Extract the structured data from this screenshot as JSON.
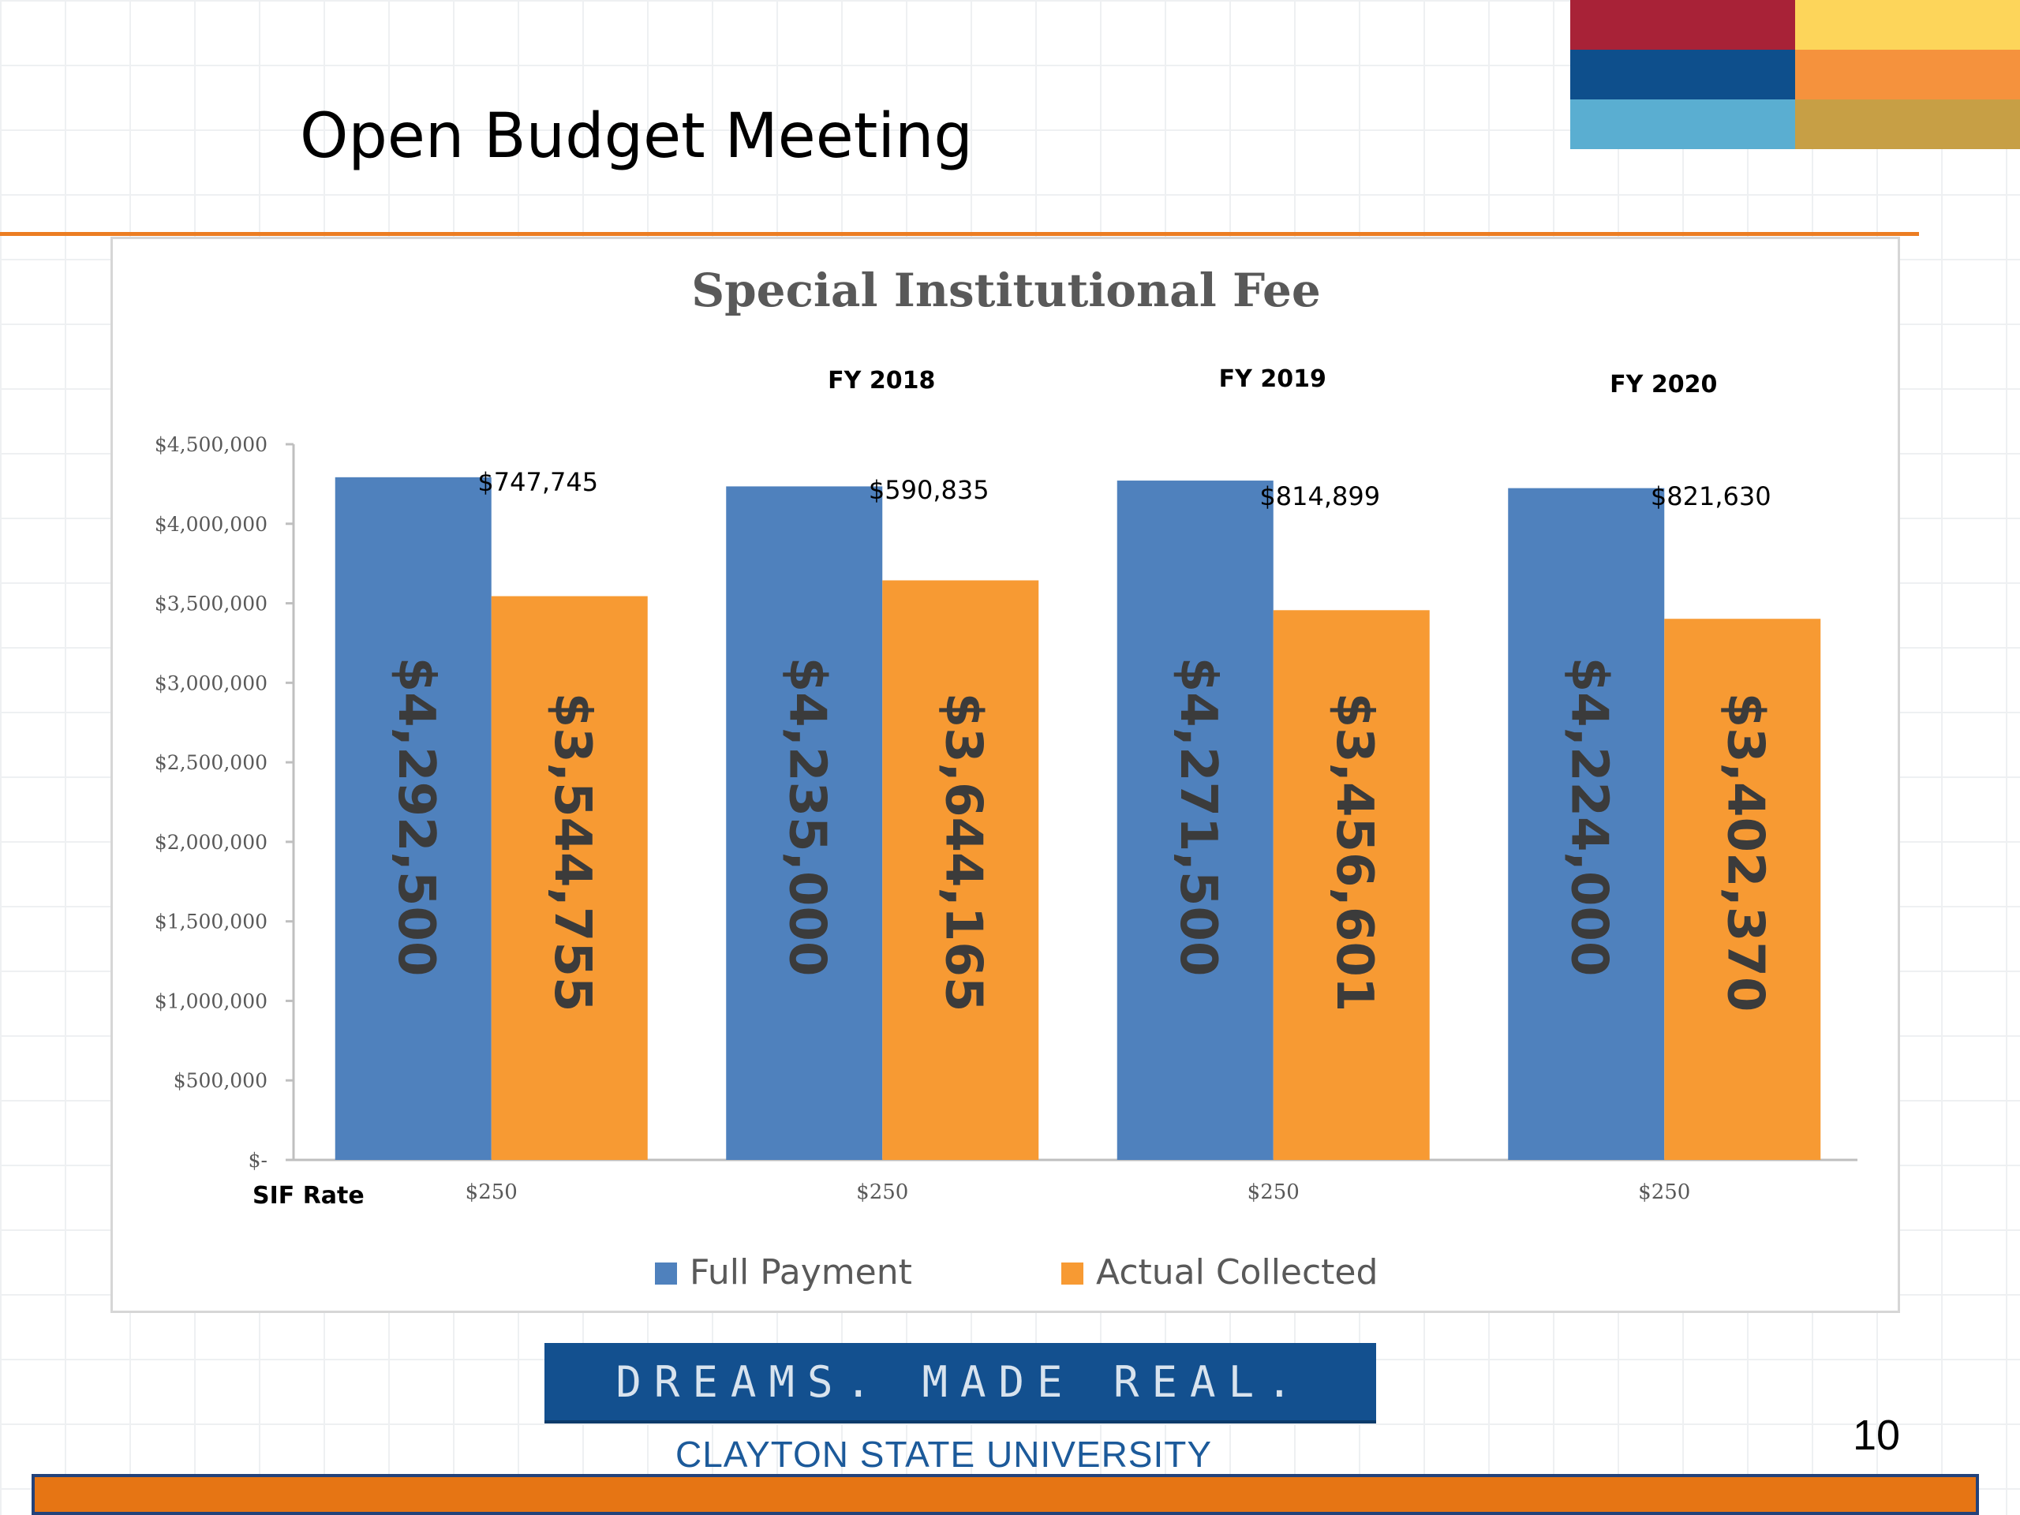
{
  "slide": {
    "title": "Open Budget Meeting",
    "page_number": "10"
  },
  "branding": {
    "tagline": "DREAMS. MADE REAL.",
    "university": "CLAYTON STATE UNIVERSITY",
    "corner_colors": [
      "#a82237",
      "#fdd55a",
      "#0e4f8c",
      "#f5923d",
      "#5aaed1",
      "#c79f45"
    ]
  },
  "chart_data": {
    "type": "bar",
    "title": "Special Institutional Fee",
    "categories": [
      "",
      "FY 2018",
      "FY 2019",
      "FY 2020"
    ],
    "series": [
      {
        "name": "Full Payment",
        "color": "#4f81bd",
        "values": [
          4292500,
          4235000,
          4271500,
          4224000
        ],
        "labels": [
          "$4,292,500",
          "$4,235,000",
          "$4,271,500",
          "$4,224,000"
        ]
      },
      {
        "name": "Actual Collected",
        "color": "#f79a33",
        "values": [
          3544755,
          3644165,
          3456601,
          3402370
        ],
        "labels": [
          "$3,544,755",
          "$3,644,165",
          "$3,456,601",
          "$3,402,370"
        ]
      }
    ],
    "difference_labels": [
      "$747,745",
      "$590,835",
      "$814,899",
      "$821,630"
    ],
    "x_row_label": "SIF Rate",
    "x_row_values": [
      "$250",
      "$250",
      "$250",
      "$250"
    ],
    "ylim": [
      0,
      4500000
    ],
    "y_ticks": [
      0,
      500000,
      1000000,
      1500000,
      2000000,
      2500000,
      3000000,
      3500000,
      4000000,
      4500000
    ],
    "y_tick_labels": [
      "$-",
      "$500,000",
      "$1,000,000",
      "$1,500,000",
      "$2,000,000",
      "$2,500,000",
      "$3,000,000",
      "$3,500,000",
      "$4,000,000",
      "$4,500,000"
    ],
    "legend_position": "bottom",
    "grid": false
  }
}
